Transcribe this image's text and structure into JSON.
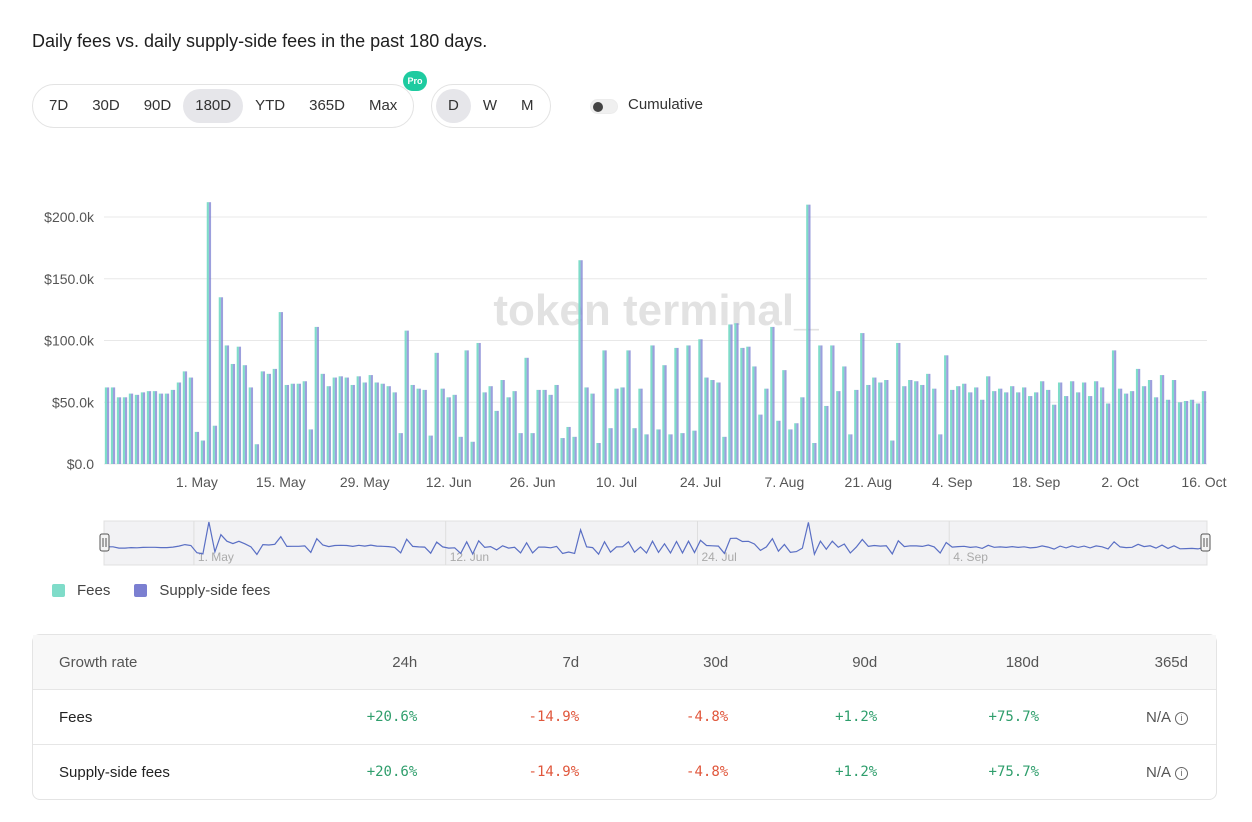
{
  "title": "Daily fees vs. daily supply-side fees in the past 180 days.",
  "range_buttons": [
    {
      "label": "7D",
      "active": false
    },
    {
      "label": "30D",
      "active": false
    },
    {
      "label": "90D",
      "active": false
    },
    {
      "label": "180D",
      "active": true
    },
    {
      "label": "YTD",
      "active": false
    },
    {
      "label": "365D",
      "active": false
    },
    {
      "label": "Max",
      "active": false
    }
  ],
  "pro_badge": "Pro",
  "granularity_buttons": [
    {
      "label": "D",
      "active": true
    },
    {
      "label": "W",
      "active": false
    },
    {
      "label": "M",
      "active": false
    }
  ],
  "cumulative_label": "Cumulative",
  "watermark": "token terminal_",
  "colors": {
    "fees": "#7fdcc9",
    "supply": "#7b7fd1",
    "grid": "#e8e8e8",
    "positive": "#2f9e6c",
    "negative": "#e0573c"
  },
  "chart_data": {
    "type": "bar",
    "ylim": [
      0,
      200000
    ],
    "y_ticks": [
      "$0.0",
      "$50.0k",
      "$100.0k",
      "$150.0k",
      "$200.0k"
    ],
    "x_ticks": [
      {
        "label": "1. May",
        "index": 15
      },
      {
        "label": "15. May",
        "index": 29
      },
      {
        "label": "29. May",
        "index": 43
      },
      {
        "label": "12. Jun",
        "index": 57
      },
      {
        "label": "26. Jun",
        "index": 71
      },
      {
        "label": "10. Jul",
        "index": 85
      },
      {
        "label": "24. Jul",
        "index": 99
      },
      {
        "label": "7. Aug",
        "index": 113
      },
      {
        "label": "21. Aug",
        "index": 127
      },
      {
        "label": "4. Sep",
        "index": 141
      },
      {
        "label": "18. Sep",
        "index": 155
      },
      {
        "label": "2. Oct",
        "index": 169
      },
      {
        "label": "16. Oct",
        "index": 183
      }
    ],
    "navigator_labels": [
      {
        "label": "1. May",
        "index": 15
      },
      {
        "label": "12. Jun",
        "index": 57
      },
      {
        "label": "24. Jul",
        "index": 99
      },
      {
        "label": "4. Sep",
        "index": 141
      }
    ],
    "series": [
      {
        "name": "Fees",
        "values": [
          62000,
          62000,
          54000,
          54000,
          57000,
          56000,
          58000,
          59000,
          59000,
          57000,
          57000,
          60000,
          66000,
          75000,
          70000,
          26000,
          19000,
          212000,
          31000,
          135000,
          96000,
          81000,
          95000,
          80000,
          62000,
          16000,
          75000,
          73000,
          77000,
          123000,
          64000,
          65000,
          65000,
          67000,
          28000,
          111000,
          73000,
          63000,
          70000,
          71000,
          70000,
          64000,
          71000,
          66000,
          72000,
          66000,
          65000,
          63000,
          58000,
          25000,
          108000,
          64000,
          61000,
          60000,
          23000,
          90000,
          61000,
          54000,
          56000,
          22000,
          92000,
          18000,
          98000,
          58000,
          63000,
          43000,
          68000,
          54000,
          59000,
          25000,
          86000,
          25000,
          60000,
          60000,
          56000,
          64000,
          21000,
          30000,
          22000,
          165000,
          62000,
          57000,
          17000,
          92000,
          29000,
          61000,
          62000,
          92000,
          29000,
          61000,
          24000,
          96000,
          28000,
          80000,
          24000,
          94000,
          25000,
          96000,
          27000,
          101000,
          70000,
          68000,
          66000,
          22000,
          113000,
          114000,
          94000,
          95000,
          79000,
          40000,
          61000,
          111000,
          35000,
          76000,
          28000,
          33000,
          54000,
          210000,
          17000,
          96000,
          47000,
          96000,
          59000,
          79000,
          24000,
          60000,
          106000,
          64000,
          70000,
          66000,
          68000,
          19000,
          98000,
          63000,
          68000,
          67000,
          64000,
          73000,
          61000,
          24000,
          88000,
          60000,
          63000,
          65000,
          58000,
          62000,
          52000,
          71000,
          59000,
          61000,
          58000,
          63000,
          58000,
          62000,
          55000,
          58000,
          67000,
          60000,
          48000,
          66000,
          55000,
          67000,
          58000,
          66000,
          55000,
          67000,
          62000,
          49000,
          92000,
          61000,
          57000,
          59000,
          77000,
          63000,
          68000,
          54000,
          72000,
          52000,
          68000,
          50000,
          51000,
          52000,
          49000,
          59000
        ]
      },
      {
        "name": "Supply-side fees",
        "values": [
          62000,
          62000,
          54000,
          54000,
          57000,
          56000,
          58000,
          59000,
          59000,
          57000,
          57000,
          60000,
          66000,
          75000,
          70000,
          26000,
          19000,
          212000,
          31000,
          135000,
          96000,
          81000,
          95000,
          80000,
          62000,
          16000,
          75000,
          73000,
          77000,
          123000,
          64000,
          65000,
          65000,
          67000,
          28000,
          111000,
          73000,
          63000,
          70000,
          71000,
          70000,
          64000,
          71000,
          66000,
          72000,
          66000,
          65000,
          63000,
          58000,
          25000,
          108000,
          64000,
          61000,
          60000,
          23000,
          90000,
          61000,
          54000,
          56000,
          22000,
          92000,
          18000,
          98000,
          58000,
          63000,
          43000,
          68000,
          54000,
          59000,
          25000,
          86000,
          25000,
          60000,
          60000,
          56000,
          64000,
          21000,
          30000,
          22000,
          165000,
          62000,
          57000,
          17000,
          92000,
          29000,
          61000,
          62000,
          92000,
          29000,
          61000,
          24000,
          96000,
          28000,
          80000,
          24000,
          94000,
          25000,
          96000,
          27000,
          101000,
          70000,
          68000,
          66000,
          22000,
          113000,
          114000,
          94000,
          95000,
          79000,
          40000,
          61000,
          111000,
          35000,
          76000,
          28000,
          33000,
          54000,
          210000,
          17000,
          96000,
          47000,
          96000,
          59000,
          79000,
          24000,
          60000,
          106000,
          64000,
          70000,
          66000,
          68000,
          19000,
          98000,
          63000,
          68000,
          67000,
          64000,
          73000,
          61000,
          24000,
          88000,
          60000,
          63000,
          65000,
          58000,
          62000,
          52000,
          71000,
          59000,
          61000,
          58000,
          63000,
          58000,
          62000,
          55000,
          58000,
          67000,
          60000,
          48000,
          66000,
          55000,
          67000,
          58000,
          66000,
          55000,
          67000,
          62000,
          49000,
          92000,
          61000,
          57000,
          59000,
          77000,
          63000,
          68000,
          54000,
          72000,
          52000,
          68000,
          50000,
          51000,
          52000,
          49000,
          59000
        ]
      }
    ]
  },
  "legend": [
    {
      "label": "Fees",
      "color": "#7fdcc9"
    },
    {
      "label": "Supply-side fees",
      "color": "#7b7fd1"
    }
  ],
  "table": {
    "headers": [
      "Growth rate",
      "24h",
      "7d",
      "30d",
      "90d",
      "180d",
      "365d"
    ],
    "rows": [
      {
        "label": "Fees",
        "values": [
          "+20.6%",
          "-14.9%",
          "-4.8%",
          "+1.2%",
          "+75.7%",
          "N/A"
        ]
      },
      {
        "label": "Supply-side fees",
        "values": [
          "+20.6%",
          "-14.9%",
          "-4.8%",
          "+1.2%",
          "+75.7%",
          "N/A"
        ]
      }
    ]
  }
}
